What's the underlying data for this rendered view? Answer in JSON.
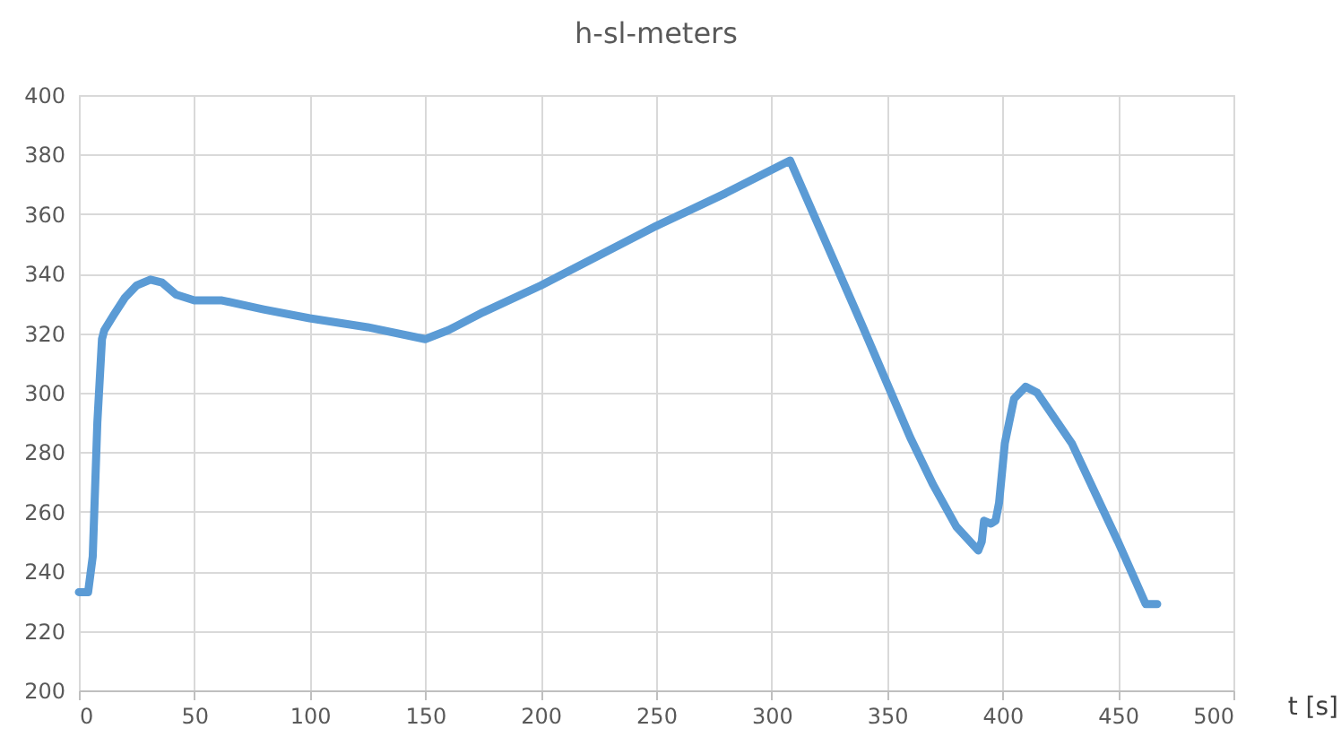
{
  "chart_data": {
    "type": "line",
    "title": "h-sl-meters",
    "xlabel": "t [s]",
    "xlim": [
      0,
      500
    ],
    "xticks": [
      0,
      50,
      100,
      150,
      200,
      250,
      300,
      350,
      400,
      450,
      500
    ],
    "ylim": [
      200,
      400
    ],
    "yticks": [
      200,
      220,
      240,
      260,
      280,
      300,
      320,
      340,
      360,
      380,
      400
    ],
    "grid": true,
    "line_style": "solid",
    "marker": "none",
    "series": [
      {
        "color": "#5b9bd5",
        "x": [
          0,
          4,
          6,
          8,
          10,
          11,
          15,
          20,
          25,
          31,
          36,
          42,
          50,
          62,
          80,
          100,
          125,
          150,
          160,
          175,
          200,
          250,
          280,
          308,
          339,
          360,
          370,
          380,
          389.5,
          391,
          392,
          395,
          397,
          398.5,
          401,
          405,
          410,
          415,
          430,
          450,
          462,
          467
        ],
        "values": [
          233,
          233,
          245,
          290,
          318,
          321,
          326,
          332,
          336,
          338,
          337,
          333,
          331,
          331,
          328,
          325,
          322,
          318,
          321,
          327,
          336,
          356,
          367,
          378,
          323,
          285,
          269,
          255,
          247,
          250,
          257,
          256,
          257,
          263,
          283,
          298,
          302,
          300,
          283,
          250,
          229,
          229
        ]
      }
    ]
  }
}
